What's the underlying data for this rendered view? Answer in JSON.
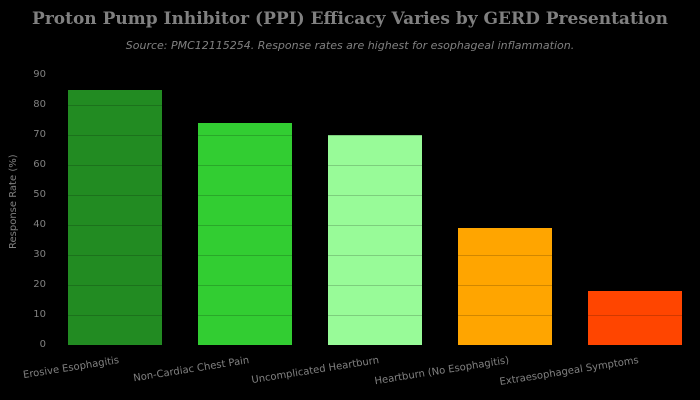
{
  "figure": {
    "background": "#000000",
    "text_color": "#808080"
  },
  "chart_data": {
    "type": "bar",
    "title": "Proton Pump Inhibitor (PPI) Efficacy Varies by GERD Presentation",
    "subtitle": "Source: PMC12115254. Response rates are highest for esophageal inflammation.",
    "xlabel": "",
    "ylabel": "Response Rate (%)",
    "categories": [
      "Erosive Esophagitis",
      "Non-Cardiac Chest Pain",
      "Uncomplicated Heartburn",
      "Heartburn (No Esophagitis)",
      "Extraesophageal Symptoms"
    ],
    "values": [
      85,
      74,
      70,
      39,
      18
    ],
    "bar_colors": [
      "#228B22",
      "#32CD32",
      "#98FB98",
      "#FFA500",
      "#FF4500"
    ],
    "ylim": [
      0,
      90
    ],
    "ytick_step": 10,
    "grid": true,
    "legend": false,
    "x_tick_rotation_deg": 9
  }
}
